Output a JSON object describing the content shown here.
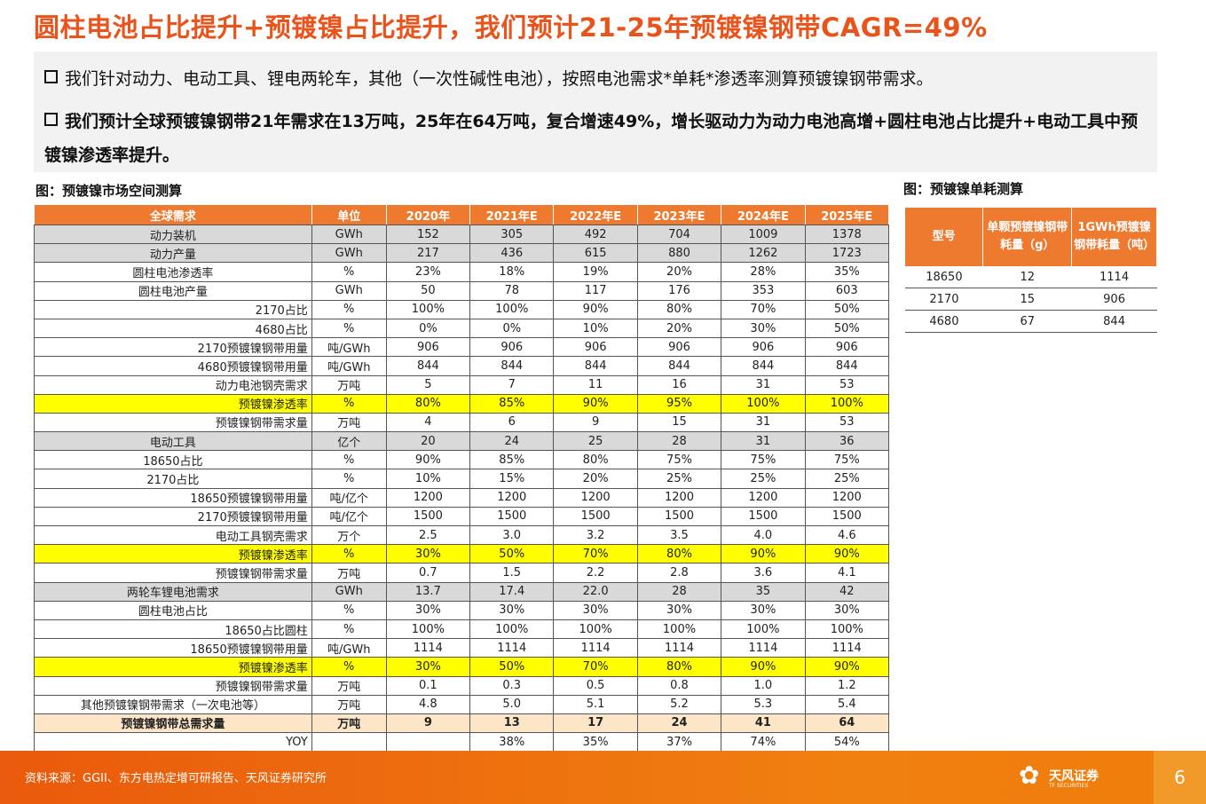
{
  "title": "圆柱电池占比提升+预镀镍占比提升，我们预计21-25年预镀镍钢带CAGR=49%",
  "bullets": [
    "我们针对动力、电动工具、锂电两轮车，其他（一次性碱性电池），按照电池需求*单耗*渗透率测算预镀镍钢带需求。",
    "我们预计全球预镀镍钢带21年需求在13万吨，25年在64万吨，复合增速49%，增长驱动力为动力电池高增+圆柱电池占比提升+电动工具中预镀镍渗透率提升。"
  ],
  "main_caption": "图：预镀镍市场空间测算",
  "side_caption": "图：预镀镍单耗测算",
  "colors": {
    "accent": "#ee7a30",
    "title": "#e8541c",
    "highlight": "#ffff00",
    "grey_row": "#d9d9d9",
    "total_row": "#fde6c8"
  },
  "main_table": {
    "headers": [
      "全球需求",
      "单位",
      "2020年",
      "2021年E",
      "2022年E",
      "2023年E",
      "2024年E",
      "2025年E"
    ],
    "rows": [
      {
        "style": "grey",
        "align": "c",
        "label": "动力装机",
        "unit": "GWh",
        "values": [
          "152",
          "305",
          "492",
          "704",
          "1009",
          "1378"
        ]
      },
      {
        "style": "grey",
        "align": "c",
        "label": "动力产量",
        "unit": "GWh",
        "values": [
          "217",
          "436",
          "615",
          "880",
          "1262",
          "1723"
        ]
      },
      {
        "style": "",
        "align": "c",
        "label": "圆柱电池渗透率",
        "unit": "%",
        "values": [
          "23%",
          "18%",
          "19%",
          "20%",
          "28%",
          "35%"
        ]
      },
      {
        "style": "",
        "align": "c",
        "label": "圆柱电池产量",
        "unit": "GWh",
        "values": [
          "50",
          "78",
          "117",
          "176",
          "353",
          "603"
        ]
      },
      {
        "style": "",
        "align": "r",
        "label": "2170占比",
        "unit": "%",
        "values": [
          "100%",
          "100%",
          "90%",
          "80%",
          "70%",
          "50%"
        ]
      },
      {
        "style": "",
        "align": "r",
        "label": "4680占比",
        "unit": "%",
        "values": [
          "0%",
          "0%",
          "10%",
          "20%",
          "30%",
          "50%"
        ]
      },
      {
        "style": "",
        "align": "r",
        "label": "2170预镀镍钢带用量",
        "unit": "吨/GWh",
        "values": [
          "906",
          "906",
          "906",
          "906",
          "906",
          "906"
        ]
      },
      {
        "style": "",
        "align": "r",
        "label": "4680预镀镍钢带用量",
        "unit": "吨/GWh",
        "values": [
          "844",
          "844",
          "844",
          "844",
          "844",
          "844"
        ]
      },
      {
        "style": "",
        "align": "r",
        "label": "动力电池钢壳需求",
        "unit": "万吨",
        "values": [
          "5",
          "7",
          "11",
          "16",
          "31",
          "53"
        ]
      },
      {
        "style": "yellow",
        "align": "r",
        "label": "预镀镍渗透率",
        "unit": "%",
        "values": [
          "80%",
          "85%",
          "90%",
          "95%",
          "100%",
          "100%"
        ]
      },
      {
        "style": "",
        "align": "r",
        "label": "预镀镍钢带需求量",
        "unit": "万吨",
        "values": [
          "4",
          "6",
          "9",
          "15",
          "31",
          "53"
        ]
      },
      {
        "style": "grey",
        "align": "c",
        "label": "电动工具",
        "unit": "亿个",
        "values": [
          "20",
          "24",
          "25",
          "28",
          "31",
          "36"
        ]
      },
      {
        "style": "",
        "align": "c",
        "label": "18650占比",
        "unit": "%",
        "values": [
          "90%",
          "85%",
          "80%",
          "75%",
          "75%",
          "75%"
        ]
      },
      {
        "style": "",
        "align": "c",
        "label": "2170占比",
        "unit": "%",
        "values": [
          "10%",
          "15%",
          "20%",
          "25%",
          "25%",
          "25%"
        ]
      },
      {
        "style": "",
        "align": "r",
        "label": "18650预镀镍钢带用量",
        "unit": "吨/亿个",
        "values": [
          "1200",
          "1200",
          "1200",
          "1200",
          "1200",
          "1200"
        ]
      },
      {
        "style": "",
        "align": "r",
        "label": "2170预镀镍钢带用量",
        "unit": "吨/亿个",
        "values": [
          "1500",
          "1500",
          "1500",
          "1500",
          "1500",
          "1500"
        ]
      },
      {
        "style": "",
        "align": "r",
        "label": "电动工具钢壳需求",
        "unit": "万个",
        "values": [
          "2.5",
          "3.0",
          "3.2",
          "3.5",
          "4.0",
          "4.6"
        ]
      },
      {
        "style": "yellow",
        "align": "r",
        "label": "预镀镍渗透率",
        "unit": "%",
        "values": [
          "30%",
          "50%",
          "70%",
          "80%",
          "90%",
          "90%"
        ]
      },
      {
        "style": "",
        "align": "r",
        "label": "预镀镍钢带需求量",
        "unit": "万吨",
        "values": [
          "0.7",
          "1.5",
          "2.2",
          "2.8",
          "3.6",
          "4.1"
        ]
      },
      {
        "style": "grey",
        "align": "c",
        "label": "两轮车锂电池需求",
        "unit": "GWh",
        "values": [
          "13.7",
          "17.4",
          "22.0",
          "28",
          "35",
          "42"
        ]
      },
      {
        "style": "",
        "align": "c",
        "label": "圆柱电池占比",
        "unit": "%",
        "values": [
          "30%",
          "30%",
          "30%",
          "30%",
          "30%",
          "30%"
        ]
      },
      {
        "style": "",
        "align": "r",
        "label": "18650占比圆柱",
        "unit": "%",
        "values": [
          "100%",
          "100%",
          "100%",
          "100%",
          "100%",
          "100%"
        ]
      },
      {
        "style": "",
        "align": "r",
        "label": "18650预镀镍钢带用量",
        "unit": "吨/GWh",
        "values": [
          "1114",
          "1114",
          "1114",
          "1114",
          "1114",
          "1114"
        ]
      },
      {
        "style": "yellow",
        "align": "r",
        "label": "预镀镍渗透率",
        "unit": "%",
        "values": [
          "30%",
          "50%",
          "70%",
          "80%",
          "90%",
          "90%"
        ]
      },
      {
        "style": "",
        "align": "r",
        "label": "预镀镍钢带需求量",
        "unit": "万吨",
        "values": [
          "0.1",
          "0.3",
          "0.5",
          "0.8",
          "1.0",
          "1.2"
        ]
      },
      {
        "style": "",
        "align": "c",
        "label": "其他预镀镍钢带需求（一次电池等）",
        "unit": "万吨",
        "values": [
          "4.8",
          "5.0",
          "5.1",
          "5.2",
          "5.3",
          "5.4"
        ]
      },
      {
        "style": "total",
        "align": "c",
        "label": "预镀镍钢带总需求量",
        "unit": "万吨",
        "values": [
          "9",
          "13",
          "17",
          "24",
          "41",
          "64"
        ]
      },
      {
        "style": "",
        "align": "r",
        "label": "YOY",
        "unit": "",
        "values": [
          "",
          "38%",
          "35%",
          "37%",
          "74%",
          "54%"
        ]
      }
    ]
  },
  "side_table": {
    "headers": [
      "型号",
      "单颗预镀镍钢带耗量（g）",
      "1GWh预镀镍钢带耗量（吨）"
    ],
    "rows": [
      [
        "18650",
        "12",
        "1114"
      ],
      [
        "2170",
        "15",
        "906"
      ],
      [
        "4680",
        "67",
        "844"
      ]
    ]
  },
  "footer": {
    "source": "资料来源：GGII、东方电热定增可研报告、天风证券研究所",
    "logo_name": "天风证券",
    "logo_en": "TF SECURITIES",
    "page": "6"
  }
}
